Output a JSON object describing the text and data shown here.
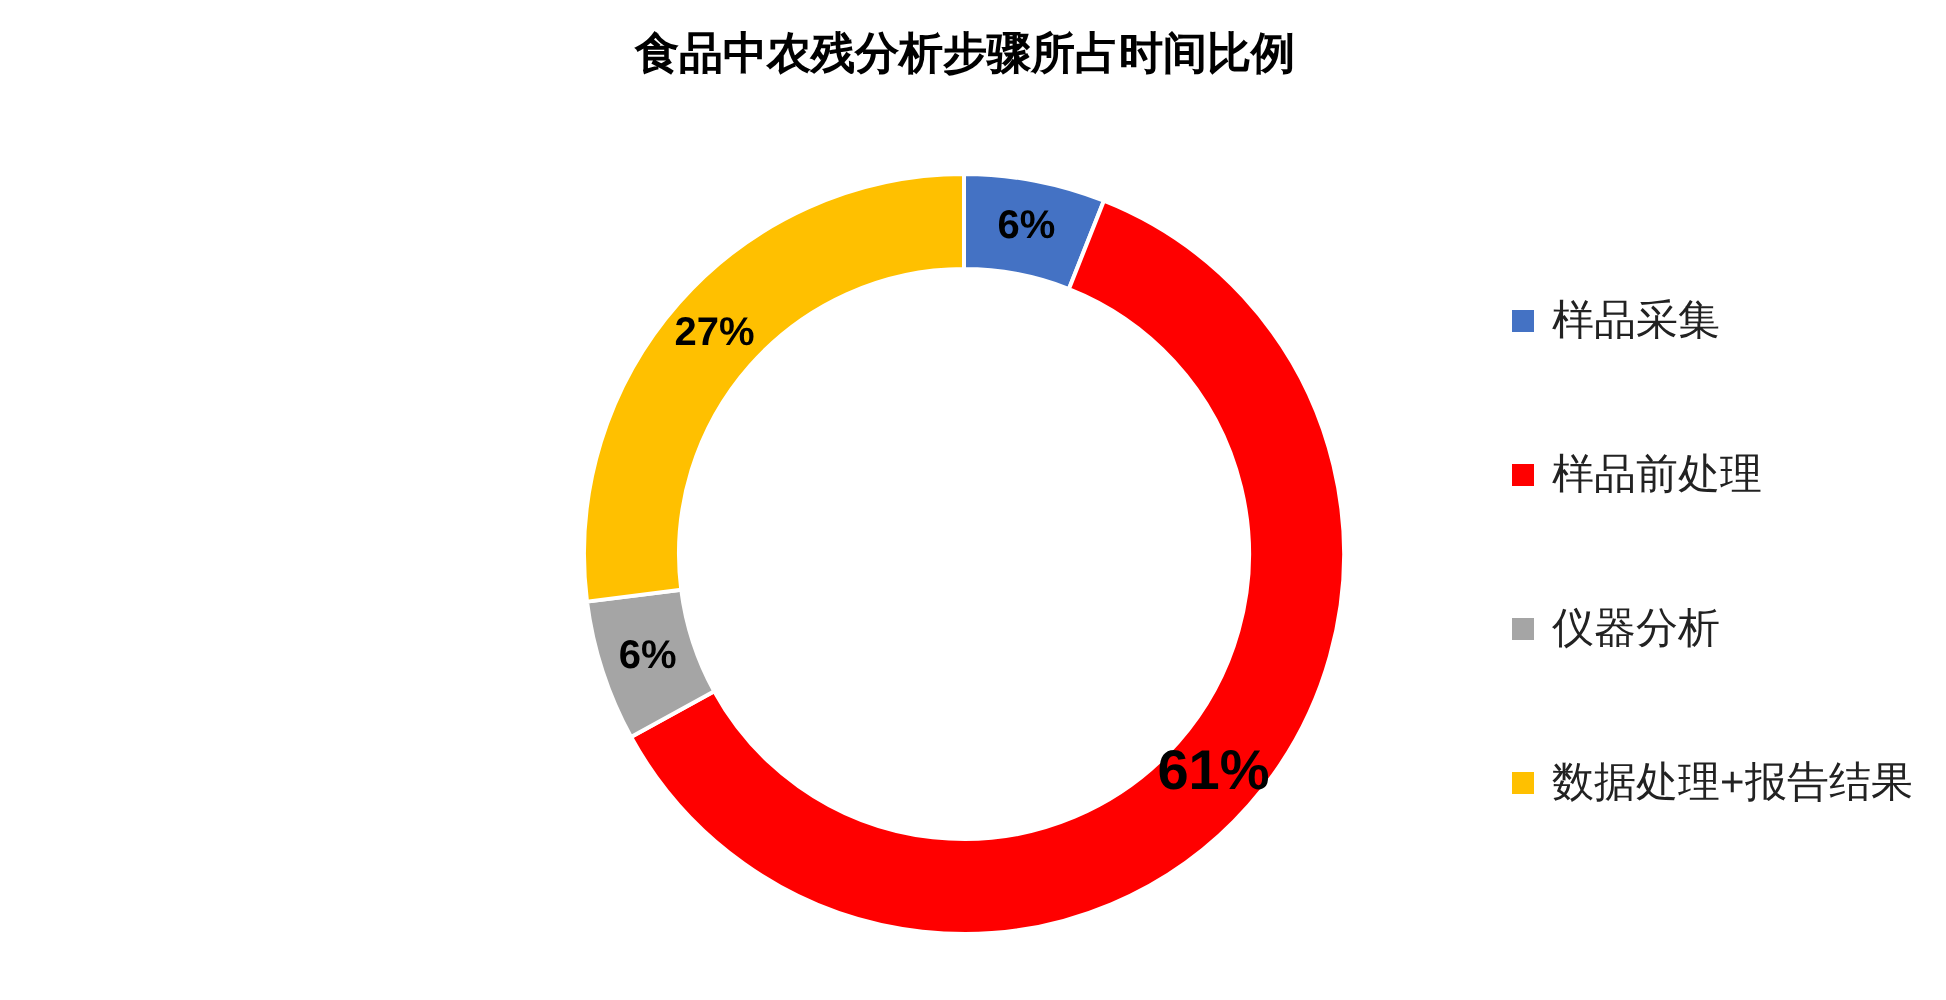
{
  "chart_data": {
    "type": "donut",
    "title": "食品中农残分析步骤所占时间比例",
    "categories": [
      "样品采集",
      "样品前处理",
      "仪器分析",
      "数据处理+报告结果"
    ],
    "values": [
      6,
      61,
      6,
      27
    ],
    "colors": [
      "#4472c4",
      "#ff0000",
      "#a5a5a5",
      "#ffc000"
    ],
    "value_labels": [
      "6%",
      "61%",
      "6%",
      "27%"
    ],
    "legend": "right"
  }
}
